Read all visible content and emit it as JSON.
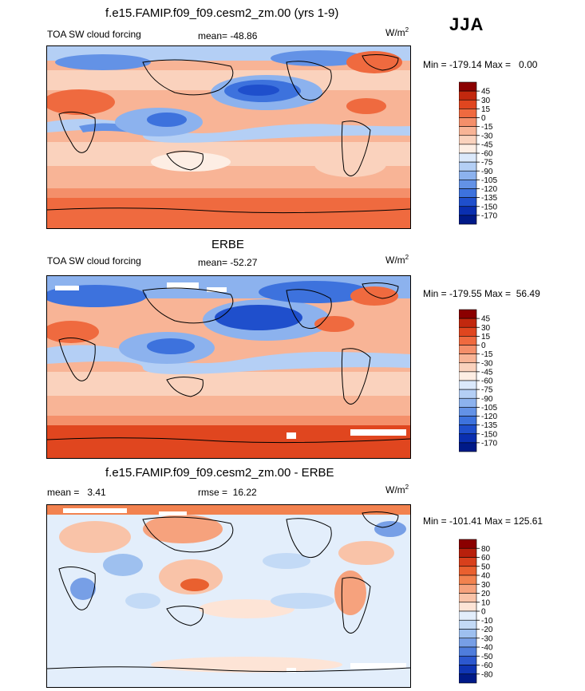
{
  "season": "JJA",
  "units": {
    "base": "W/m",
    "exp": "2"
  },
  "panels": [
    {
      "id": "model",
      "title": "f.e15.FAMIP.f09_f09.cesm2_zm.00 (yrs 1-9)",
      "left_label": "TOA SW cloud forcing",
      "center_label": "mean= -48.86",
      "minmax": "Min = -179.14 Max =   0.00",
      "colorbar": {
        "labels": [
          "45",
          "30",
          "15",
          "0",
          "-15",
          "-30",
          "-45",
          "-60",
          "-75",
          "-90",
          "-105",
          "-120",
          "-135",
          "-150",
          "-170"
        ],
        "colors": [
          "#8b0000",
          "#c2280e",
          "#e0461f",
          "#ef6a3f",
          "#f48f6a",
          "#f8b496",
          "#fad2bd",
          "#fdeee4",
          "#dbe9fb",
          "#b4cff5",
          "#8cb2ee",
          "#6392e6",
          "#3d72dd",
          "#1f4fcc",
          "#0a2fb0",
          "#001a88"
        ]
      }
    },
    {
      "id": "obs",
      "title": "ERBE",
      "left_label": "TOA SW cloud forcing",
      "center_label": "mean= -52.27",
      "minmax": "Min = -179.55 Max =  56.49",
      "colorbar": {
        "labels": [
          "45",
          "30",
          "15",
          "0",
          "-15",
          "-30",
          "-45",
          "-60",
          "-75",
          "-90",
          "-105",
          "-120",
          "-135",
          "-150",
          "-170"
        ],
        "colors": [
          "#8b0000",
          "#c2280e",
          "#e0461f",
          "#ef6a3f",
          "#f48f6a",
          "#f8b496",
          "#fad2bd",
          "#fdeee4",
          "#dbe9fb",
          "#b4cff5",
          "#8cb2ee",
          "#6392e6",
          "#3d72dd",
          "#1f4fcc",
          "#0a2fb0",
          "#001a88"
        ]
      }
    },
    {
      "id": "diff",
      "title": "f.e15.FAMIP.f09_f09.cesm2_zm.00 - ERBE",
      "left_label": "mean =   3.41",
      "center_label": "rmse =  16.22",
      "minmax": "Min = -101.41 Max = 125.61",
      "colorbar": {
        "labels": [
          "80",
          "60",
          "50",
          "40",
          "30",
          "20",
          "10",
          "0",
          "-10",
          "-20",
          "-30",
          "-40",
          "-50",
          "-60",
          "-80"
        ],
        "colors": [
          "#8b0000",
          "#b8200c",
          "#d8401c",
          "#e9602f",
          "#f2824f",
          "#f6a27d",
          "#f9c3a8",
          "#fde4d6",
          "#e3eefb",
          "#c3daf6",
          "#9ec0ef",
          "#779fe6",
          "#4f7ddc",
          "#2c58cf",
          "#0f35b4",
          "#001a88"
        ]
      }
    }
  ],
  "chart_data": [
    {
      "type": "heatmap",
      "title": "f.e15.FAMIP.f09_f09.cesm2_zm.00 (yrs 1-9)",
      "variable": "TOA SW cloud forcing",
      "units": "W/m2",
      "season": "JJA",
      "mean": -48.86,
      "min": -179.14,
      "max": 0.0,
      "contour_levels": [
        -170,
        -150,
        -135,
        -120,
        -105,
        -90,
        -75,
        -60,
        -45,
        -30,
        -15,
        0,
        15,
        30,
        45
      ]
    },
    {
      "type": "heatmap",
      "title": "ERBE",
      "variable": "TOA SW cloud forcing",
      "units": "W/m2",
      "season": "JJA",
      "mean": -52.27,
      "min": -179.55,
      "max": 56.49,
      "contour_levels": [
        -170,
        -150,
        -135,
        -120,
        -105,
        -90,
        -75,
        -60,
        -45,
        -30,
        -15,
        0,
        15,
        30,
        45
      ]
    },
    {
      "type": "heatmap",
      "title": "f.e15.FAMIP.f09_f09.cesm2_zm.00 - ERBE",
      "units": "W/m2",
      "season": "JJA",
      "mean": 3.41,
      "rmse": 16.22,
      "min": -101.41,
      "max": 125.61,
      "contour_levels": [
        -80,
        -60,
        -50,
        -40,
        -30,
        -20,
        -10,
        0,
        10,
        20,
        30,
        40,
        50,
        60,
        80
      ]
    }
  ]
}
